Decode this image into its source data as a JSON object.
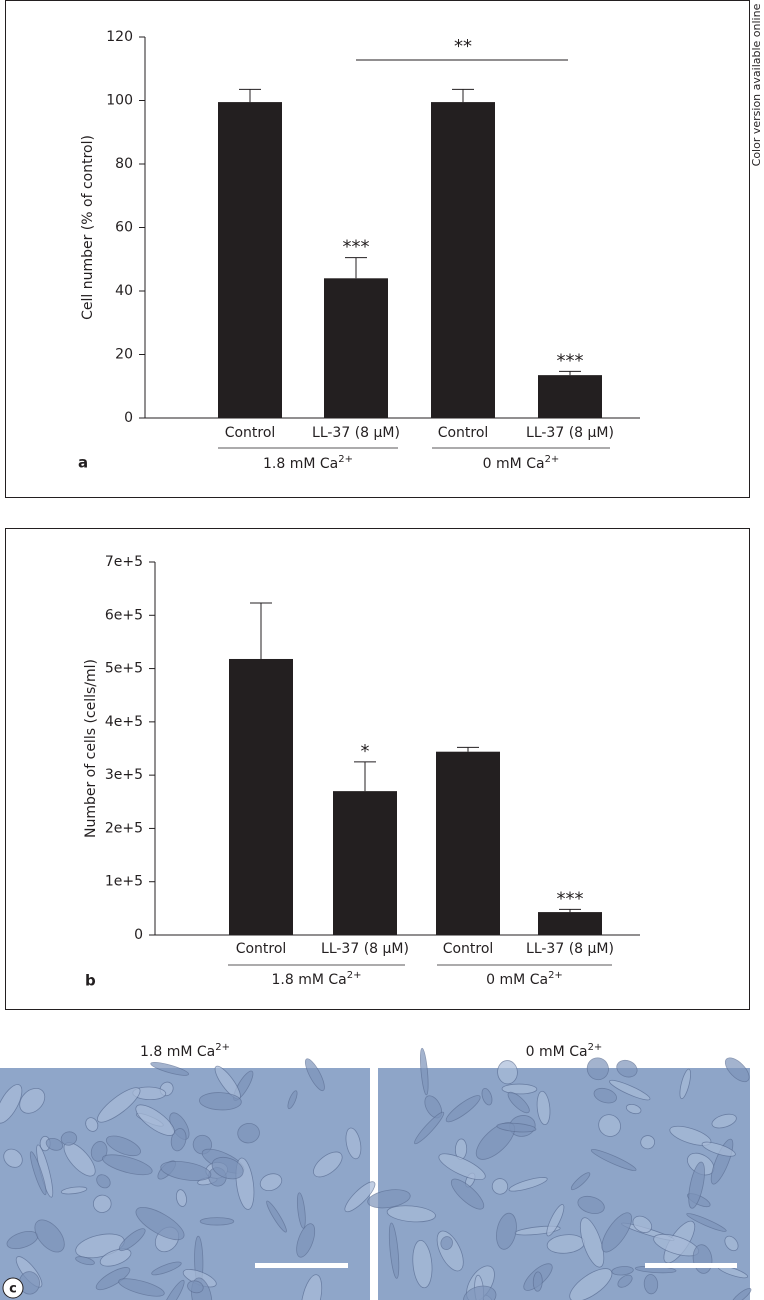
{
  "side_note": "Color version available online",
  "chart_data": [
    {
      "type": "bar",
      "panel_label": "a",
      "ylabel": "Cell number (% of control)",
      "categories": [
        "Control",
        "LL-37 (8 μM)",
        "Control",
        "LL-37 (8 μM)"
      ],
      "values": [
        99.5,
        44,
        99.5,
        13.5
      ],
      "errors": [
        4,
        6.5,
        4,
        1.2
      ],
      "annotations": [
        null,
        "***",
        null,
        "***"
      ],
      "bracket_label": "**",
      "groups": [
        {
          "label": "1.8 mM Ca",
          "sup": "2+"
        },
        {
          "label": "0 mM Ca",
          "sup": "2+"
        }
      ],
      "color": "#231f20",
      "ylim": [
        0,
        120
      ],
      "yticks": [
        0,
        20,
        40,
        60,
        80,
        100,
        120
      ]
    },
    {
      "type": "bar",
      "panel_label": "b",
      "ylabel": "Number of cells (cells/ml)",
      "categories": [
        "Control",
        "LL-37 (8 μM)",
        "Control",
        "LL-37 (8 μM)"
      ],
      "values": [
        518000,
        270000,
        344000,
        43000
      ],
      "errors": [
        105000,
        55000,
        8000,
        5000
      ],
      "annotations": [
        null,
        "*",
        null,
        "***"
      ],
      "groups": [
        {
          "label": "1.8 mM Ca",
          "sup": "2+"
        },
        {
          "label": "0 mM Ca",
          "sup": "2+"
        }
      ],
      "color": "#231f20",
      "ylim": [
        0,
        700000
      ],
      "yticks": [
        0,
        {
          "value": 100000,
          "label": "1e+5"
        },
        {
          "value": 200000,
          "label": "2e+5"
        },
        {
          "value": 300000,
          "label": "3e+5"
        },
        {
          "value": 400000,
          "label": "4e+5"
        },
        {
          "value": 500000,
          "label": "5e+5"
        },
        {
          "value": 600000,
          "label": "6e+5"
        },
        {
          "value": 700000,
          "label": "7e+5"
        }
      ]
    }
  ],
  "panel_c": {
    "panel_label": "c",
    "left_label": {
      "label": "1.8 mM Ca",
      "sup": "2+"
    },
    "right_label": {
      "label": "0 mM Ca",
      "sup": "2+"
    }
  }
}
